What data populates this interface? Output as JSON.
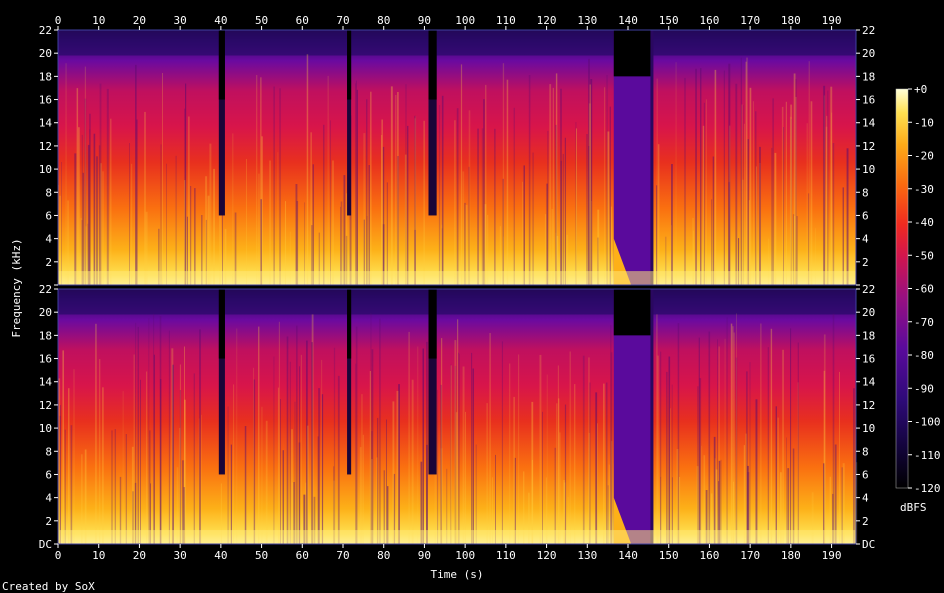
{
  "chart_data": {
    "type": "heatmap",
    "title": "",
    "xlabel": "Time (s)",
    "ylabel": "Frequency (kHz)",
    "xlim": [
      0,
      196
    ],
    "ylim": [
      0,
      22
    ],
    "x_ticks": [
      "0",
      "10",
      "20",
      "30",
      "40",
      "50",
      "60",
      "70",
      "80",
      "90",
      "100",
      "110",
      "120",
      "130",
      "140",
      "150",
      "160",
      "170",
      "180",
      "190"
    ],
    "y_ticks": [
      "DC",
      "2",
      "4",
      "6",
      "8",
      "10",
      "12",
      "14",
      "16",
      "18",
      "20",
      "22"
    ],
    "channels": 2,
    "colorbar": {
      "label": "dBFS",
      "range": [
        -120,
        0
      ],
      "ticks": [
        "+0",
        "-10",
        "-20",
        "-30",
        "-40",
        "-50",
        "-60",
        "-70",
        "-80",
        "-90",
        "-100",
        "-110",
        "-120"
      ]
    },
    "colors": [
      "#000000",
      "#1a0538",
      "#3d0a82",
      "#6a0aa0",
      "#a0107a",
      "#d8154a",
      "#f0301e",
      "#fa7010",
      "#fdb018",
      "#ffe050",
      "#ffffc8"
    ],
    "silent_gaps_s": [
      [
        39.5,
        41
      ],
      [
        71,
        72
      ],
      [
        91,
        93
      ],
      [
        136.5,
        146
      ]
    ],
    "footer": "Created by SoX"
  }
}
